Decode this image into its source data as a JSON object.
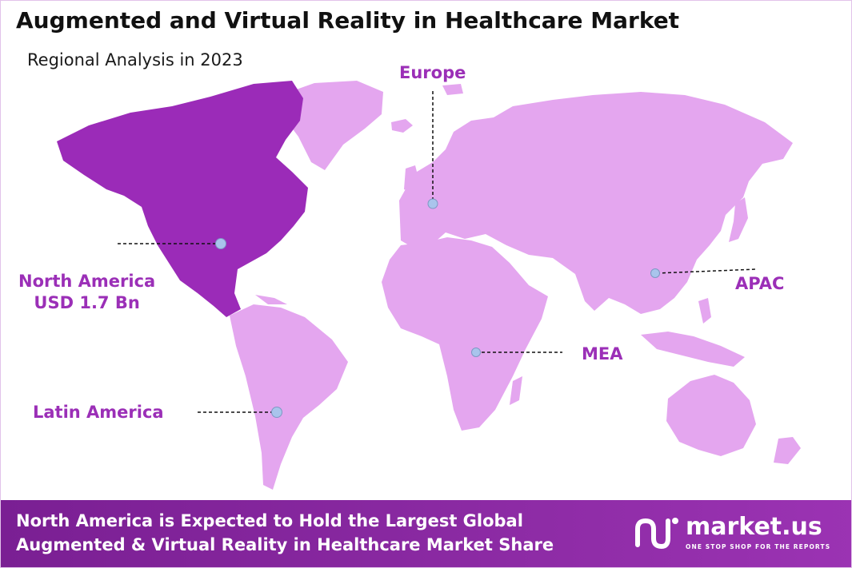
{
  "title": "Augmented and Virtual Reality in Healthcare Market",
  "subtitle": "Regional Analysis in 2023",
  "regions": {
    "europe": {
      "label": "Europe"
    },
    "north_america": {
      "label": "North America",
      "value": "USD 1.7 Bn",
      "highlighted": true
    },
    "apac": {
      "label": "APAC"
    },
    "mea": {
      "label": "MEA"
    },
    "latin_america": {
      "label": "Latin America"
    }
  },
  "footer": {
    "line1": "North America is Expected to Hold the Largest Global",
    "line2": "Augmented & Virtual Reality in Healthcare Market Share"
  },
  "brand": {
    "name": "market.us",
    "tagline": "ONE STOP SHOP FOR THE REPORTS",
    "icon": "market-us-logo-icon"
  },
  "colors": {
    "highlight_region": "#9b2bb8",
    "other_regions": "#e4a6ef",
    "label_text": "#9b2fb7",
    "marker": "#a9c4ec",
    "footer_bg": "#8b2aa3",
    "title_text": "#111111"
  }
}
